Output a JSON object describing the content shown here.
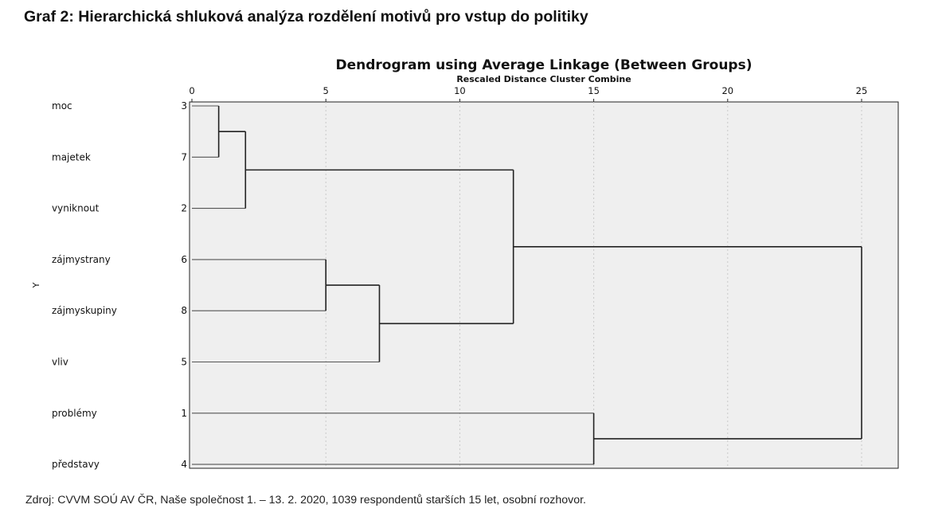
{
  "heading": "Graf 2: Hierarchická shluková analýza rozdělení motivů pro vstup do politiky",
  "source": "Zdroj: CVVM SOÚ AV ČR, Naše společnost 1. – 13. 2. 2020, 1039 respondentů starších 15 let, osobní rozhovor.",
  "chart_data": {
    "type": "dendrogram",
    "title": "Dendrogram using Average Linkage (Between Groups)",
    "xlabel": "Rescaled Distance Cluster Combine",
    "ylabel": "Y",
    "xlim": [
      0,
      25
    ],
    "xticks": [
      0,
      5,
      10,
      15,
      20,
      25
    ],
    "grid": "vertical dotted",
    "background": "#efefef",
    "leaves": [
      {
        "label": "moc",
        "case": "3"
      },
      {
        "label": "majetek",
        "case": "7"
      },
      {
        "label": "vyniknout",
        "case": "2"
      },
      {
        "label": "zájmystrany",
        "case": "6"
      },
      {
        "label": "zájmyskupiny",
        "case": "8"
      },
      {
        "label": "vliv",
        "case": "5"
      },
      {
        "label": "problémy",
        "case": "1"
      },
      {
        "label": "představy",
        "case": "4"
      }
    ],
    "merges": [
      {
        "left": "L0",
        "right": "L1",
        "distance": 1
      },
      {
        "left": "M0",
        "right": "L2",
        "distance": 2
      },
      {
        "left": "L3",
        "right": "L4",
        "distance": 5
      },
      {
        "left": "M2",
        "right": "L5",
        "distance": 7
      },
      {
        "left": "M1",
        "right": "M3",
        "distance": 12
      },
      {
        "left": "L6",
        "right": "L7",
        "distance": 15
      },
      {
        "left": "M4",
        "right": "M5",
        "distance": 25
      }
    ]
  }
}
